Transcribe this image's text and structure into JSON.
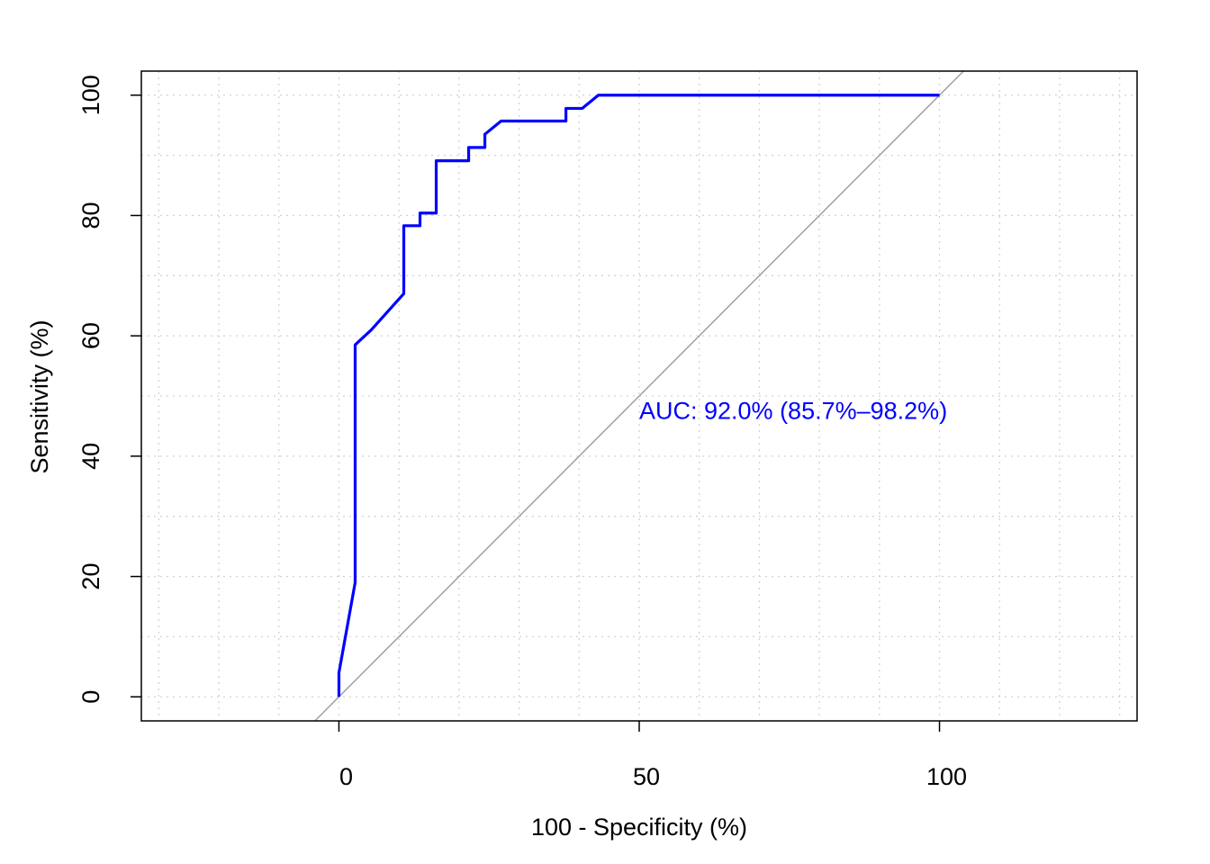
{
  "chart_data": {
    "type": "line",
    "title": "",
    "xlabel": "100 - Specificity (%)",
    "ylabel": "Sensitivity (%)",
    "xlim": [
      -32.9,
      132.9
    ],
    "ylim": [
      -4,
      104
    ],
    "xticks": [
      0,
      50,
      100
    ],
    "xtick_labels": [
      "0",
      "50",
      "100"
    ],
    "yticks": [
      0,
      20,
      40,
      60,
      80,
      100
    ],
    "ytick_labels": [
      "0",
      "20",
      "40",
      "60",
      "80",
      "100"
    ],
    "grid": true,
    "grid_x": [
      -30,
      -20,
      -10,
      0,
      10,
      20,
      30,
      40,
      50,
      60,
      70,
      80,
      90,
      100,
      110,
      120,
      130
    ],
    "grid_y": [
      0,
      10,
      20,
      30,
      40,
      50,
      60,
      70,
      80,
      90,
      100
    ],
    "colors": {
      "roc": "#0000ff",
      "diagonal": "#a0a0a0",
      "grid": "#d3d3d3",
      "frame": "#000000"
    },
    "reference_line": {
      "x": [
        -4,
        104
      ],
      "y": [
        -4,
        104
      ]
    },
    "series": [
      {
        "x": [
          0,
          0,
          2.7,
          2.7,
          5.4,
          10.8,
          10.8,
          13.5,
          13.5,
          16.2,
          16.2,
          21.6,
          21.6,
          24.3,
          24.3,
          27.0,
          37.8,
          37.8,
          40.5,
          43.2,
          100
        ],
        "y": [
          0,
          4,
          19,
          58.5,
          61,
          67,
          78.3,
          78.3,
          80.4,
          80.4,
          89.1,
          89.1,
          91.3,
          91.3,
          93.5,
          95.7,
          95.7,
          97.8,
          97.8,
          100,
          100
        ]
      }
    ],
    "annotation": {
      "text": "AUC: 92.0% (85.7%–98.2%)",
      "x": 50,
      "y": 47.5
    }
  }
}
